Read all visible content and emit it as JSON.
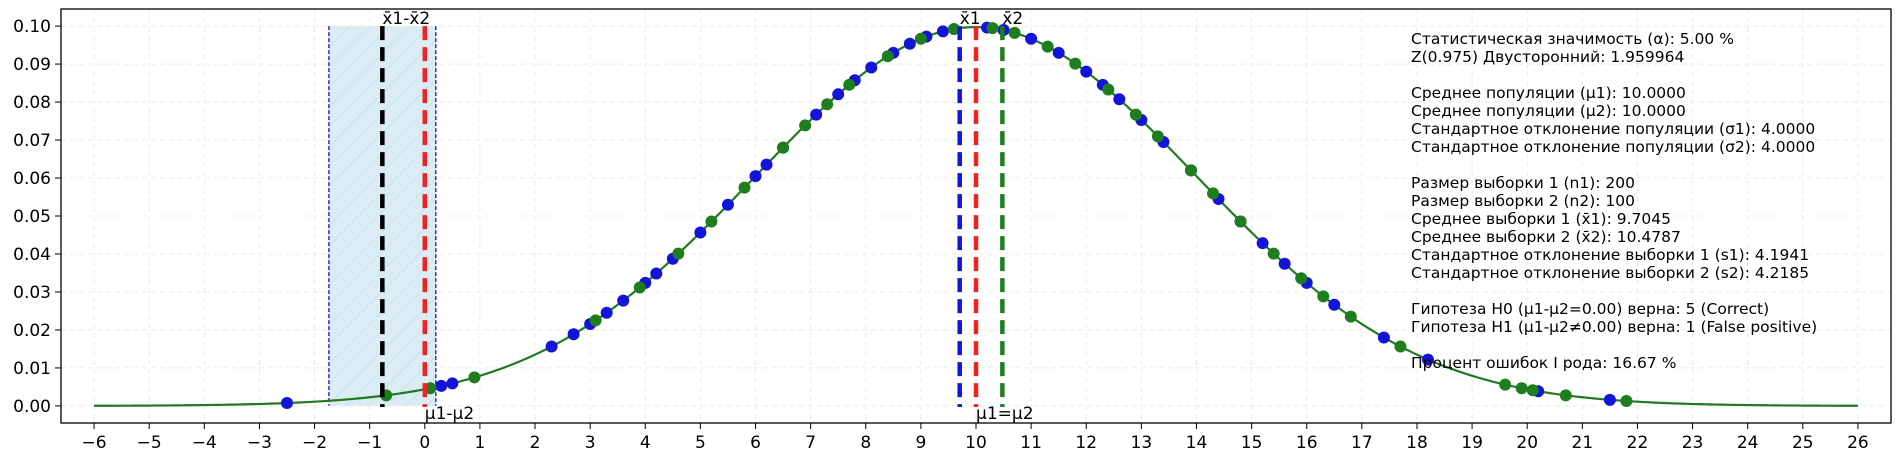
{
  "chart_data": {
    "type": "line",
    "xlim": [
      -6.6,
      26.6
    ],
    "ylim": [
      -0.0045,
      0.1045
    ],
    "x_ticks": [
      -6,
      -5,
      -4,
      -3,
      -2,
      -1,
      0,
      1,
      2,
      3,
      4,
      5,
      6,
      7,
      8,
      9,
      10,
      11,
      12,
      13,
      14,
      15,
      16,
      17,
      18,
      19,
      20,
      21,
      22,
      23,
      24,
      25,
      26
    ],
    "y_ticks": [
      0.0,
      0.01,
      0.02,
      0.03,
      0.04,
      0.05,
      0.06,
      0.07,
      0.08,
      0.09,
      0.1
    ],
    "y_tick_labels": [
      "0.00",
      "0.01",
      "0.02",
      "0.03",
      "0.04",
      "0.05",
      "0.06",
      "0.07",
      "0.08",
      "0.09",
      "0.10"
    ],
    "grid": true,
    "curve": {
      "mean": 10.0,
      "sd": 4.0,
      "x_range": [
        -6,
        26
      ],
      "color": "#217a21"
    },
    "sample1_points_x": [
      -2.5,
      0.3,
      0.5,
      2.3,
      2.7,
      3.0,
      3.3,
      3.6,
      4.0,
      4.2,
      4.5,
      5.0,
      5.5,
      6.0,
      6.2,
      6.5,
      7.1,
      7.5,
      7.8,
      8.1,
      8.5,
      8.8,
      9.1,
      9.4,
      10.2,
      10.5,
      11.0,
      11.5,
      12.0,
      12.3,
      12.6,
      13.0,
      13.4,
      13.9,
      14.4,
      14.8,
      15.2,
      15.6,
      16.0,
      16.5,
      17.4,
      18.2,
      20.2,
      21.5
    ],
    "sample2_points_x": [
      -0.7,
      0.1,
      0.9,
      3.1,
      3.9,
      4.6,
      5.2,
      5.8,
      6.5,
      6.9,
      7.3,
      7.7,
      8.4,
      9.0,
      9.6,
      10.3,
      10.7,
      11.3,
      11.8,
      12.4,
      12.9,
      13.3,
      13.9,
      14.3,
      14.8,
      15.4,
      15.9,
      16.3,
      16.8,
      17.7,
      19.6,
      19.9,
      20.1,
      20.7,
      21.8
    ],
    "sample1_color": "#1414d8",
    "sample2_color": "#1e7e1e",
    "critical_region": {
      "x_start": -1.74,
      "x_end": 0.2,
      "top": 0.1
    },
    "vlines": [
      {
        "x": -0.77,
        "color": "#000000",
        "label": "x̄1-x̄2",
        "label_pos": "top"
      },
      {
        "x": 0.0,
        "color": "#ee2222",
        "label": "μ1-μ2",
        "label_pos": "bottom"
      },
      {
        "x": 9.7045,
        "color": "#1414d8",
        "label": "x̄1",
        "label_pos": "top"
      },
      {
        "x": 10.0,
        "color": "#ee2222",
        "label": "μ1=μ2",
        "label_pos": "bottom"
      },
      {
        "x": 10.4787,
        "color": "#1e7e1e",
        "label": "x̄2",
        "label_pos": "top"
      }
    ],
    "stats_lines": [
      "Статистическая значимость (α): 5.00 %",
      "Z(0.975) Двусторонний: 1.959964",
      "",
      "Среднее популяции (μ1): 10.0000",
      "Среднее популяции (μ2): 10.0000",
      "Стандартное отклонение популяции (σ1): 4.0000",
      "Стандартное отклонение популяции (σ2): 4.0000",
      "",
      "Размер выборки 1 (n1): 200",
      "Размер выборки 2 (n2): 100",
      "Среднее выборки 1 (x̄1): 9.7045",
      "Среднее выборки 2 (x̄2): 10.4787",
      "Стандартное отклонение выборки 1 (s1): 4.1941",
      "Стандартное отклонение выборки 2 (s2): 4.2185",
      "",
      "Гипотеза H0 (μ1-μ2=0.00) верна: 5 (Correct)",
      "Гипотеза H1 (μ1-μ2≠0.00) верна: 1 (False positive)",
      "",
      "Процент ошибок I рода: 16.67 %"
    ]
  }
}
